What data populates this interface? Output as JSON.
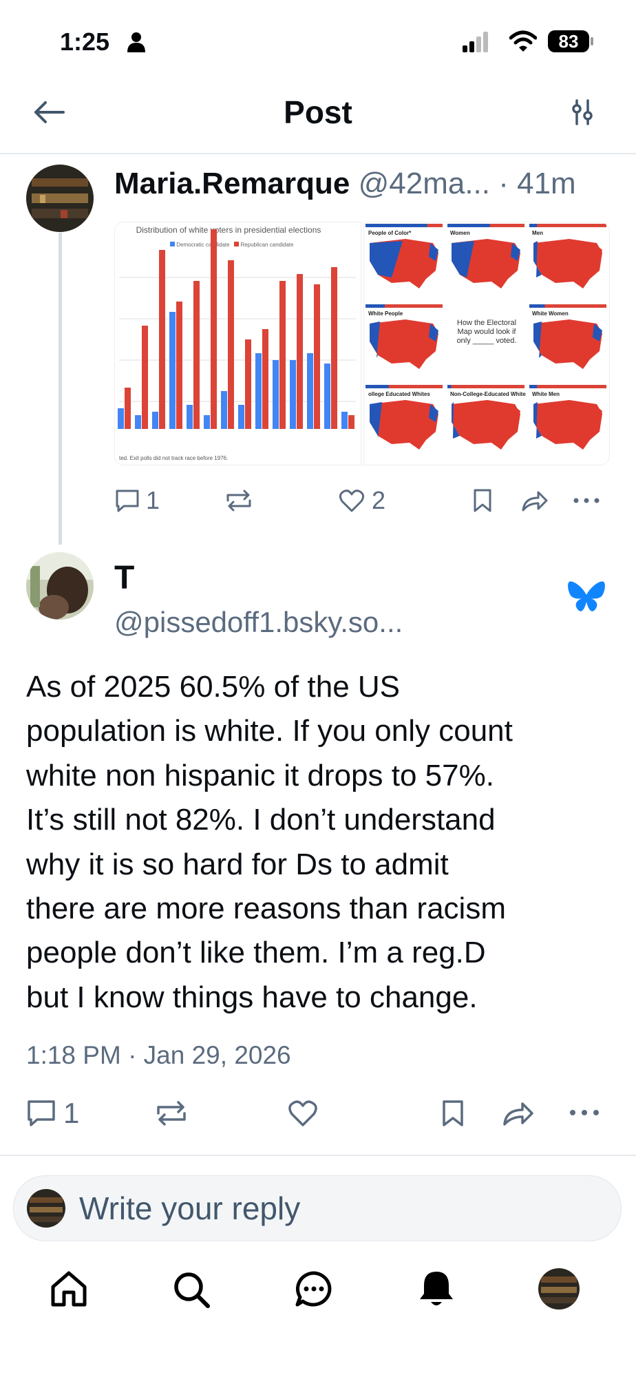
{
  "status_bar": {
    "time": "1:25",
    "battery": "83"
  },
  "header": {
    "title": "Post"
  },
  "parent_post": {
    "author": "Maria.Remarque",
    "handle": "@42ma...",
    "time": "· 41m",
    "chart_image": {
      "title": "Distribution of white voters in presidential elections",
      "legend": [
        "Democratic candidate",
        "Republican candidate"
      ],
      "footnote": "ted. Exit polls did not track race before 1976."
    },
    "map_image": {
      "panels": [
        "People of Color*",
        "Women",
        "Men",
        "White People",
        "White Women",
        "ollege Educated Whites",
        "Non-College-Educated Whites",
        "White Men"
      ],
      "center_text": "How the Electoral Map would look if only _____ voted."
    },
    "replies": 1,
    "likes": 2
  },
  "post": {
    "author": "T",
    "handle": "@pissedoff1.bsky.so...",
    "text_lines": [
      "As of 2025 60.5% of the US",
      "population is white. If you only count",
      "white non hispanic it drops to 57%.",
      "It’s still not 82%. I don’t understand",
      "why it is so hard for Ds to admit",
      "there are more reasons than racism",
      "people don’t like them. I’m a reg.D",
      "but I know things have to change."
    ],
    "timestamp": "1:18 PM · Jan 29, 2026",
    "replies": 1
  },
  "reply_box": {
    "placeholder": "Write your reply"
  }
}
